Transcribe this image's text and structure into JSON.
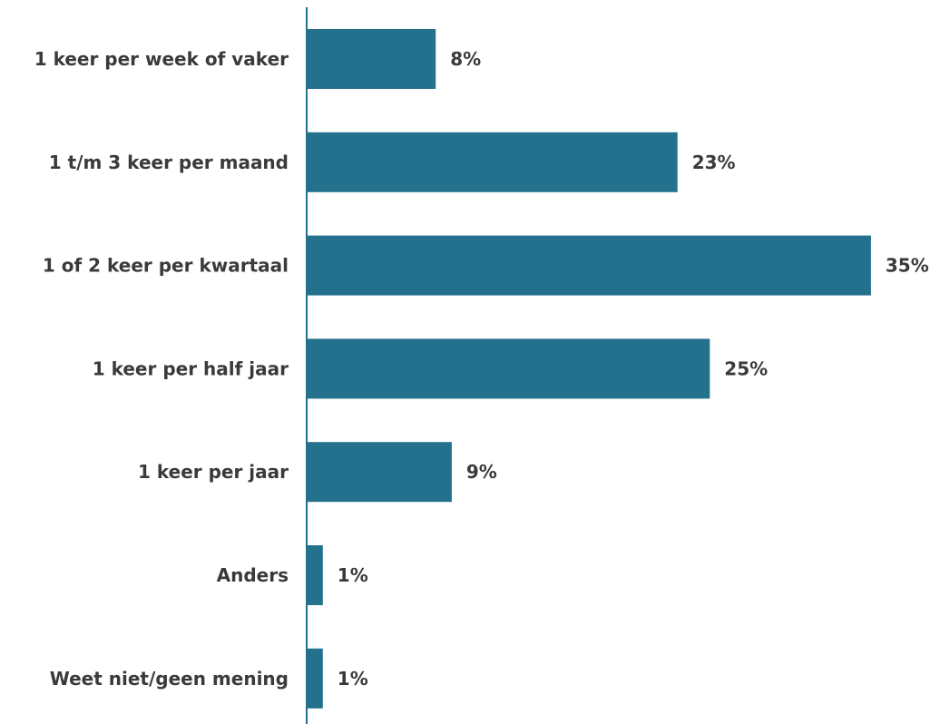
{
  "chart_data": {
    "type": "bar",
    "orientation": "horizontal",
    "categories": [
      "1 keer per week of vaker",
      "1 t/m 3 keer per maand",
      "1 of 2 keer per kwartaal",
      "1 keer per half jaar",
      "1 keer per jaar",
      "Anders",
      "Weet niet/geen mening"
    ],
    "values": [
      8,
      23,
      35,
      25,
      9,
      1,
      1
    ],
    "value_labels": [
      "8%",
      "23%",
      "35%",
      "25%",
      "9%",
      "1%",
      "1%"
    ],
    "unit": "%",
    "bar_color": "#24718e",
    "axis_color": "#24718e",
    "label_color": "#3a3a3a",
    "xlim": [
      0,
      35
    ],
    "grid": false,
    "legend": "none"
  }
}
